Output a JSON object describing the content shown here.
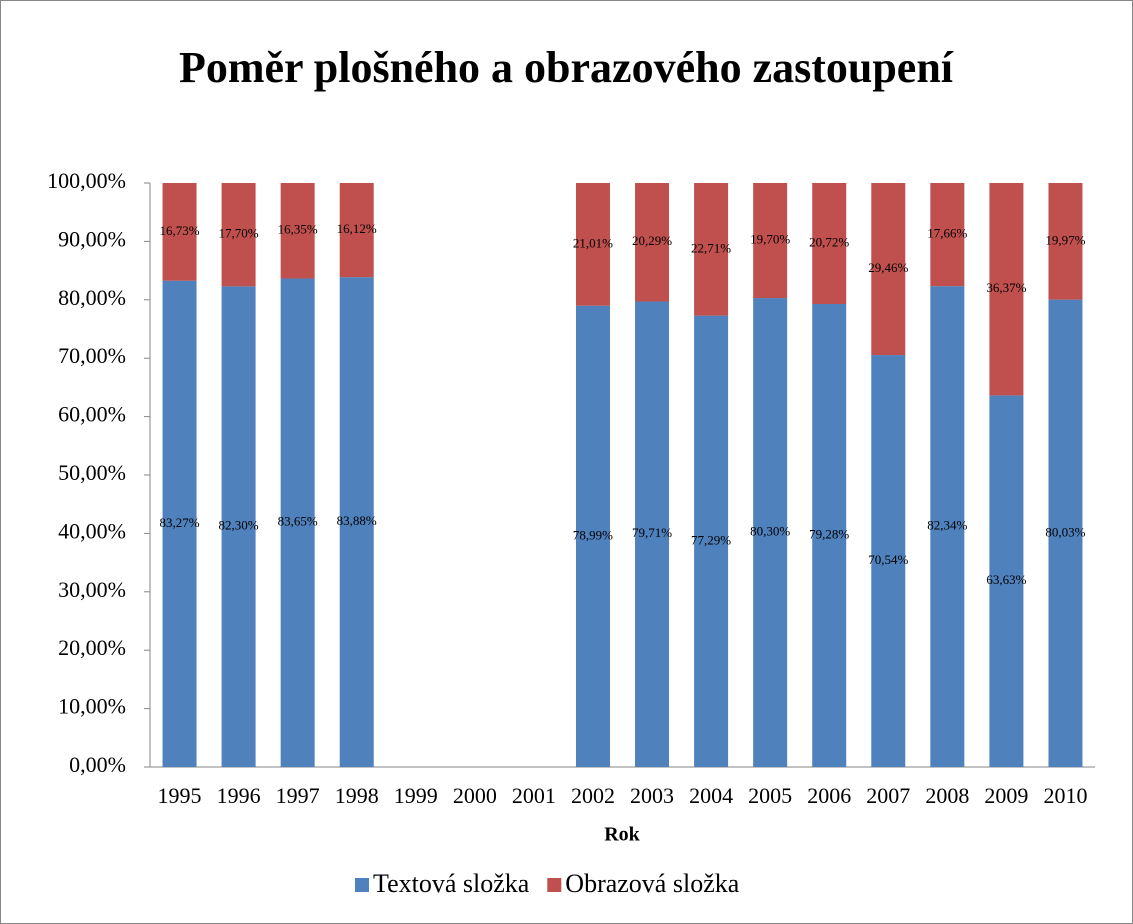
{
  "chart_data": {
    "type": "stacked_bar",
    "title": "Poměr plošného a obrazového zastoupení",
    "x_label": "Rok",
    "categories": [
      "1995",
      "1996",
      "1997",
      "1998",
      "1999",
      "2000",
      "2001",
      "2002",
      "2003",
      "2004",
      "2005",
      "2006",
      "2007",
      "2008",
      "2009",
      "2010"
    ],
    "series": [
      {
        "name": "Textová složka",
        "color": "#4f81bd",
        "values": [
          83.27,
          82.3,
          83.65,
          83.88,
          null,
          null,
          null,
          78.99,
          79.71,
          77.29,
          80.3,
          79.28,
          70.54,
          82.34,
          63.63,
          80.03
        ],
        "value_labels": [
          "83,27%",
          "82,30%",
          "83,65%",
          "83,88%",
          null,
          null,
          null,
          "78,99%",
          "79,71%",
          "77,29%",
          "80,30%",
          "79,28%",
          "70,54%",
          "82,34%",
          "63,63%",
          "80,03%"
        ]
      },
      {
        "name": "Obrazová složka",
        "color": "#c0504d",
        "values": [
          16.73,
          17.7,
          16.35,
          16.12,
          null,
          null,
          null,
          21.01,
          20.29,
          22.71,
          19.7,
          20.72,
          29.46,
          17.66,
          36.37,
          19.97
        ],
        "value_labels": [
          "16,73%",
          "17,70%",
          "16,35%",
          "16,12%",
          null,
          null,
          null,
          "21,01%",
          "20,29%",
          "22,71%",
          "19,70%",
          "20,72%",
          "29,46%",
          "17,66%",
          "36,37%",
          "19,97%"
        ]
      }
    ],
    "ylim": [
      0,
      100
    ],
    "yticks": [
      {
        "value": 0,
        "label": "0,00%"
      },
      {
        "value": 10,
        "label": "10,00%"
      },
      {
        "value": 20,
        "label": "20,00%"
      },
      {
        "value": 30,
        "label": "30,00%"
      },
      {
        "value": 40,
        "label": "40,00%"
      },
      {
        "value": 50,
        "label": "50,00%"
      },
      {
        "value": 60,
        "label": "60,00%"
      },
      {
        "value": 70,
        "label": "70,00%"
      },
      {
        "value": 80,
        "label": "80,00%"
      },
      {
        "value": 90,
        "label": "90,00%"
      },
      {
        "value": 100,
        "label": "100,00%"
      }
    ],
    "grid": false,
    "legend": "bottom"
  }
}
